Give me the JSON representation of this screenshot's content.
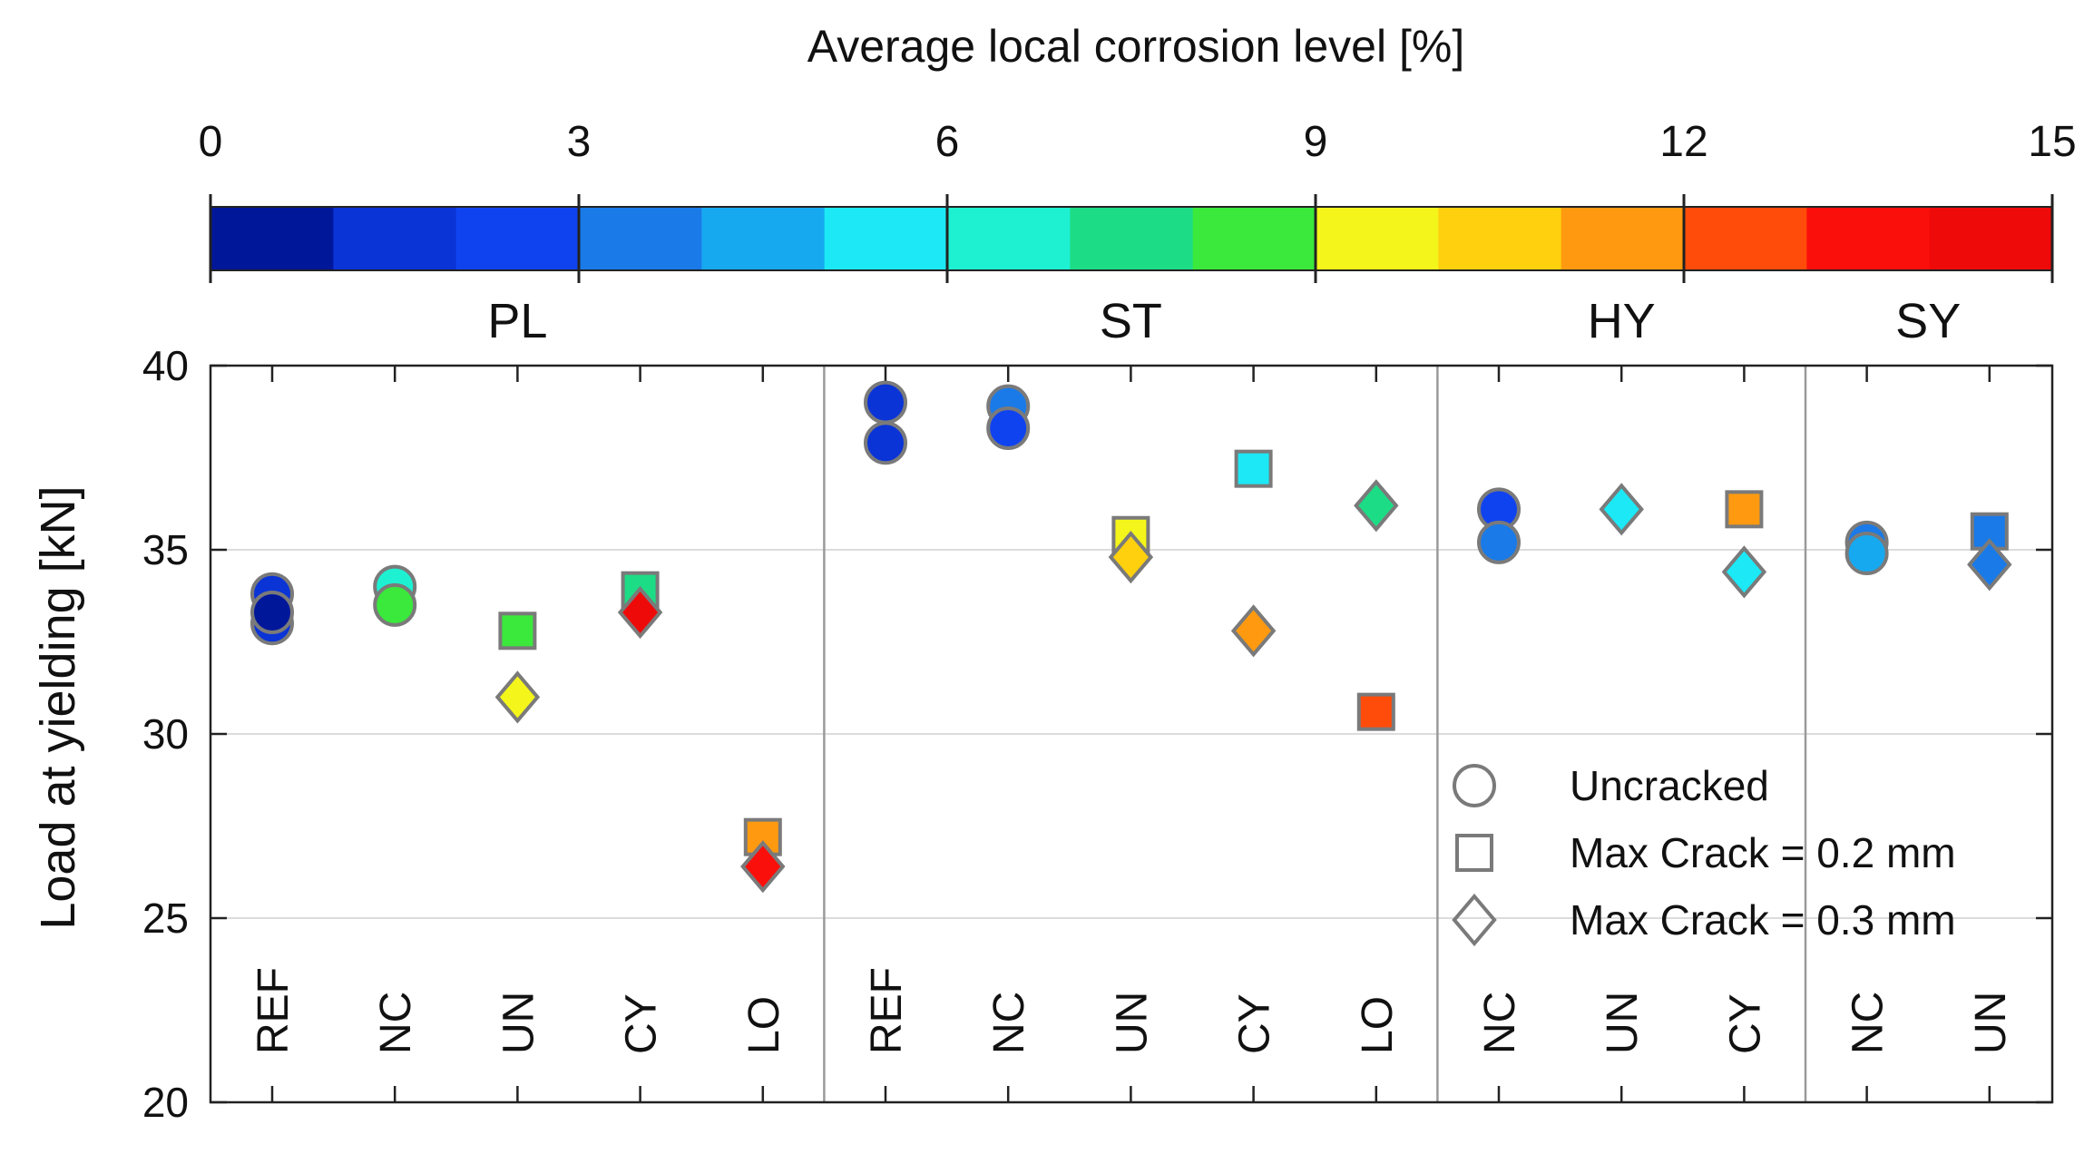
{
  "chart_data": {
    "type": "scatter",
    "colorbar": {
      "title": "Average local corrosion level [%]",
      "min": 0,
      "max": 15,
      "ticks": [
        "0",
        "3",
        "6",
        "9",
        "12",
        "15"
      ],
      "colors": [
        "#00179a",
        "#0a34d6",
        "#1043f0",
        "#1a7ae8",
        "#17a9f0",
        "#1ce8f6",
        "#1ef0d2",
        "#1ddc86",
        "#3be83c",
        "#f4f51a",
        "#fed00e",
        "#ff9a10",
        "#ff4c0a",
        "#fb0f0b",
        "#ef0a0a"
      ]
    },
    "ylabel": "Load at yielding [kN]",
    "ylim": [
      20,
      40
    ],
    "yticks": [
      "20",
      "25",
      "30",
      "35",
      "40"
    ],
    "groups": [
      {
        "name": "PL",
        "categories": [
          "REF",
          "NC",
          "UN",
          "CY",
          "LO"
        ]
      },
      {
        "name": "ST",
        "categories": [
          "REF",
          "NC",
          "UN",
          "CY",
          "LO"
        ]
      },
      {
        "name": "HY",
        "categories": [
          "NC",
          "UN",
          "CY"
        ]
      },
      {
        "name": "SY",
        "categories": [
          "NC",
          "UN"
        ]
      }
    ],
    "legend": [
      {
        "label": "Uncracked",
        "marker": "circle"
      },
      {
        "label": "Max Crack = 0.2 mm",
        "marker": "square"
      },
      {
        "label": "Max Crack = 0.3 mm",
        "marker": "diamond"
      }
    ],
    "points": [
      {
        "group": "PL",
        "category": "REF",
        "marker": "circle",
        "y": 33.0,
        "corrosion": 1.0
      },
      {
        "group": "PL",
        "category": "REF",
        "marker": "circle",
        "y": 33.8,
        "corrosion": 1.2
      },
      {
        "group": "PL",
        "category": "REF",
        "marker": "circle",
        "y": 33.3,
        "corrosion": 0.8
      },
      {
        "group": "PL",
        "category": "NC",
        "marker": "circle",
        "y": 34.0,
        "corrosion": 6.8
      },
      {
        "group": "PL",
        "category": "NC",
        "marker": "circle",
        "y": 33.5,
        "corrosion": 8.5
      },
      {
        "group": "PL",
        "category": "UN",
        "marker": "square",
        "y": 32.8,
        "corrosion": 8.8
      },
      {
        "group": "PL",
        "category": "UN",
        "marker": "diamond",
        "y": 31.0,
        "corrosion": 9.6
      },
      {
        "group": "PL",
        "category": "CY",
        "marker": "square",
        "y": 33.9,
        "corrosion": 7.5
      },
      {
        "group": "PL",
        "category": "CY",
        "marker": "diamond",
        "y": 33.3,
        "corrosion": 14.8
      },
      {
        "group": "PL",
        "category": "LO",
        "marker": "square",
        "y": 27.2,
        "corrosion": 11.5
      },
      {
        "group": "PL",
        "category": "LO",
        "marker": "diamond",
        "y": 26.4,
        "corrosion": 13.8
      },
      {
        "group": "ST",
        "category": "REF",
        "marker": "circle",
        "y": 39.0,
        "corrosion": 1.2
      },
      {
        "group": "ST",
        "category": "REF",
        "marker": "circle",
        "y": 37.9,
        "corrosion": 1.2
      },
      {
        "group": "ST",
        "category": "NC",
        "marker": "circle",
        "y": 38.9,
        "corrosion": 3.5
      },
      {
        "group": "ST",
        "category": "NC",
        "marker": "circle",
        "y": 38.3,
        "corrosion": 2.3
      },
      {
        "group": "ST",
        "category": "UN",
        "marker": "square",
        "y": 35.4,
        "corrosion": 9.0
      },
      {
        "group": "ST",
        "category": "UN",
        "marker": "diamond",
        "y": 34.8,
        "corrosion": 10.5
      },
      {
        "group": "ST",
        "category": "CY",
        "marker": "square",
        "y": 37.2,
        "corrosion": 5.6
      },
      {
        "group": "ST",
        "category": "CY",
        "marker": "diamond",
        "y": 32.8,
        "corrosion": 11.5
      },
      {
        "group": "ST",
        "category": "LO",
        "marker": "square",
        "y": 30.6,
        "corrosion": 12.5
      },
      {
        "group": "ST",
        "category": "LO",
        "marker": "diamond",
        "y": 36.2,
        "corrosion": 7.5
      },
      {
        "group": "HY",
        "category": "NC",
        "marker": "circle",
        "y": 36.1,
        "corrosion": 2.5
      },
      {
        "group": "HY",
        "category": "NC",
        "marker": "circle",
        "y": 35.2,
        "corrosion": 3.5
      },
      {
        "group": "HY",
        "category": "UN",
        "marker": "diamond",
        "y": 36.1,
        "corrosion": 5.6
      },
      {
        "group": "HY",
        "category": "CY",
        "marker": "square",
        "y": 36.1,
        "corrosion": 11.5
      },
      {
        "group": "HY",
        "category": "CY",
        "marker": "diamond",
        "y": 34.4,
        "corrosion": 5.0
      },
      {
        "group": "SY",
        "category": "NC",
        "marker": "circle",
        "y": 35.2,
        "corrosion": 3.5
      },
      {
        "group": "SY",
        "category": "NC",
        "marker": "circle",
        "y": 34.9,
        "corrosion": 4.5
      },
      {
        "group": "SY",
        "category": "UN",
        "marker": "square",
        "y": 35.5,
        "corrosion": 3.5
      },
      {
        "group": "SY",
        "category": "UN",
        "marker": "diamond",
        "y": 34.6,
        "corrosion": 3.5
      }
    ]
  }
}
